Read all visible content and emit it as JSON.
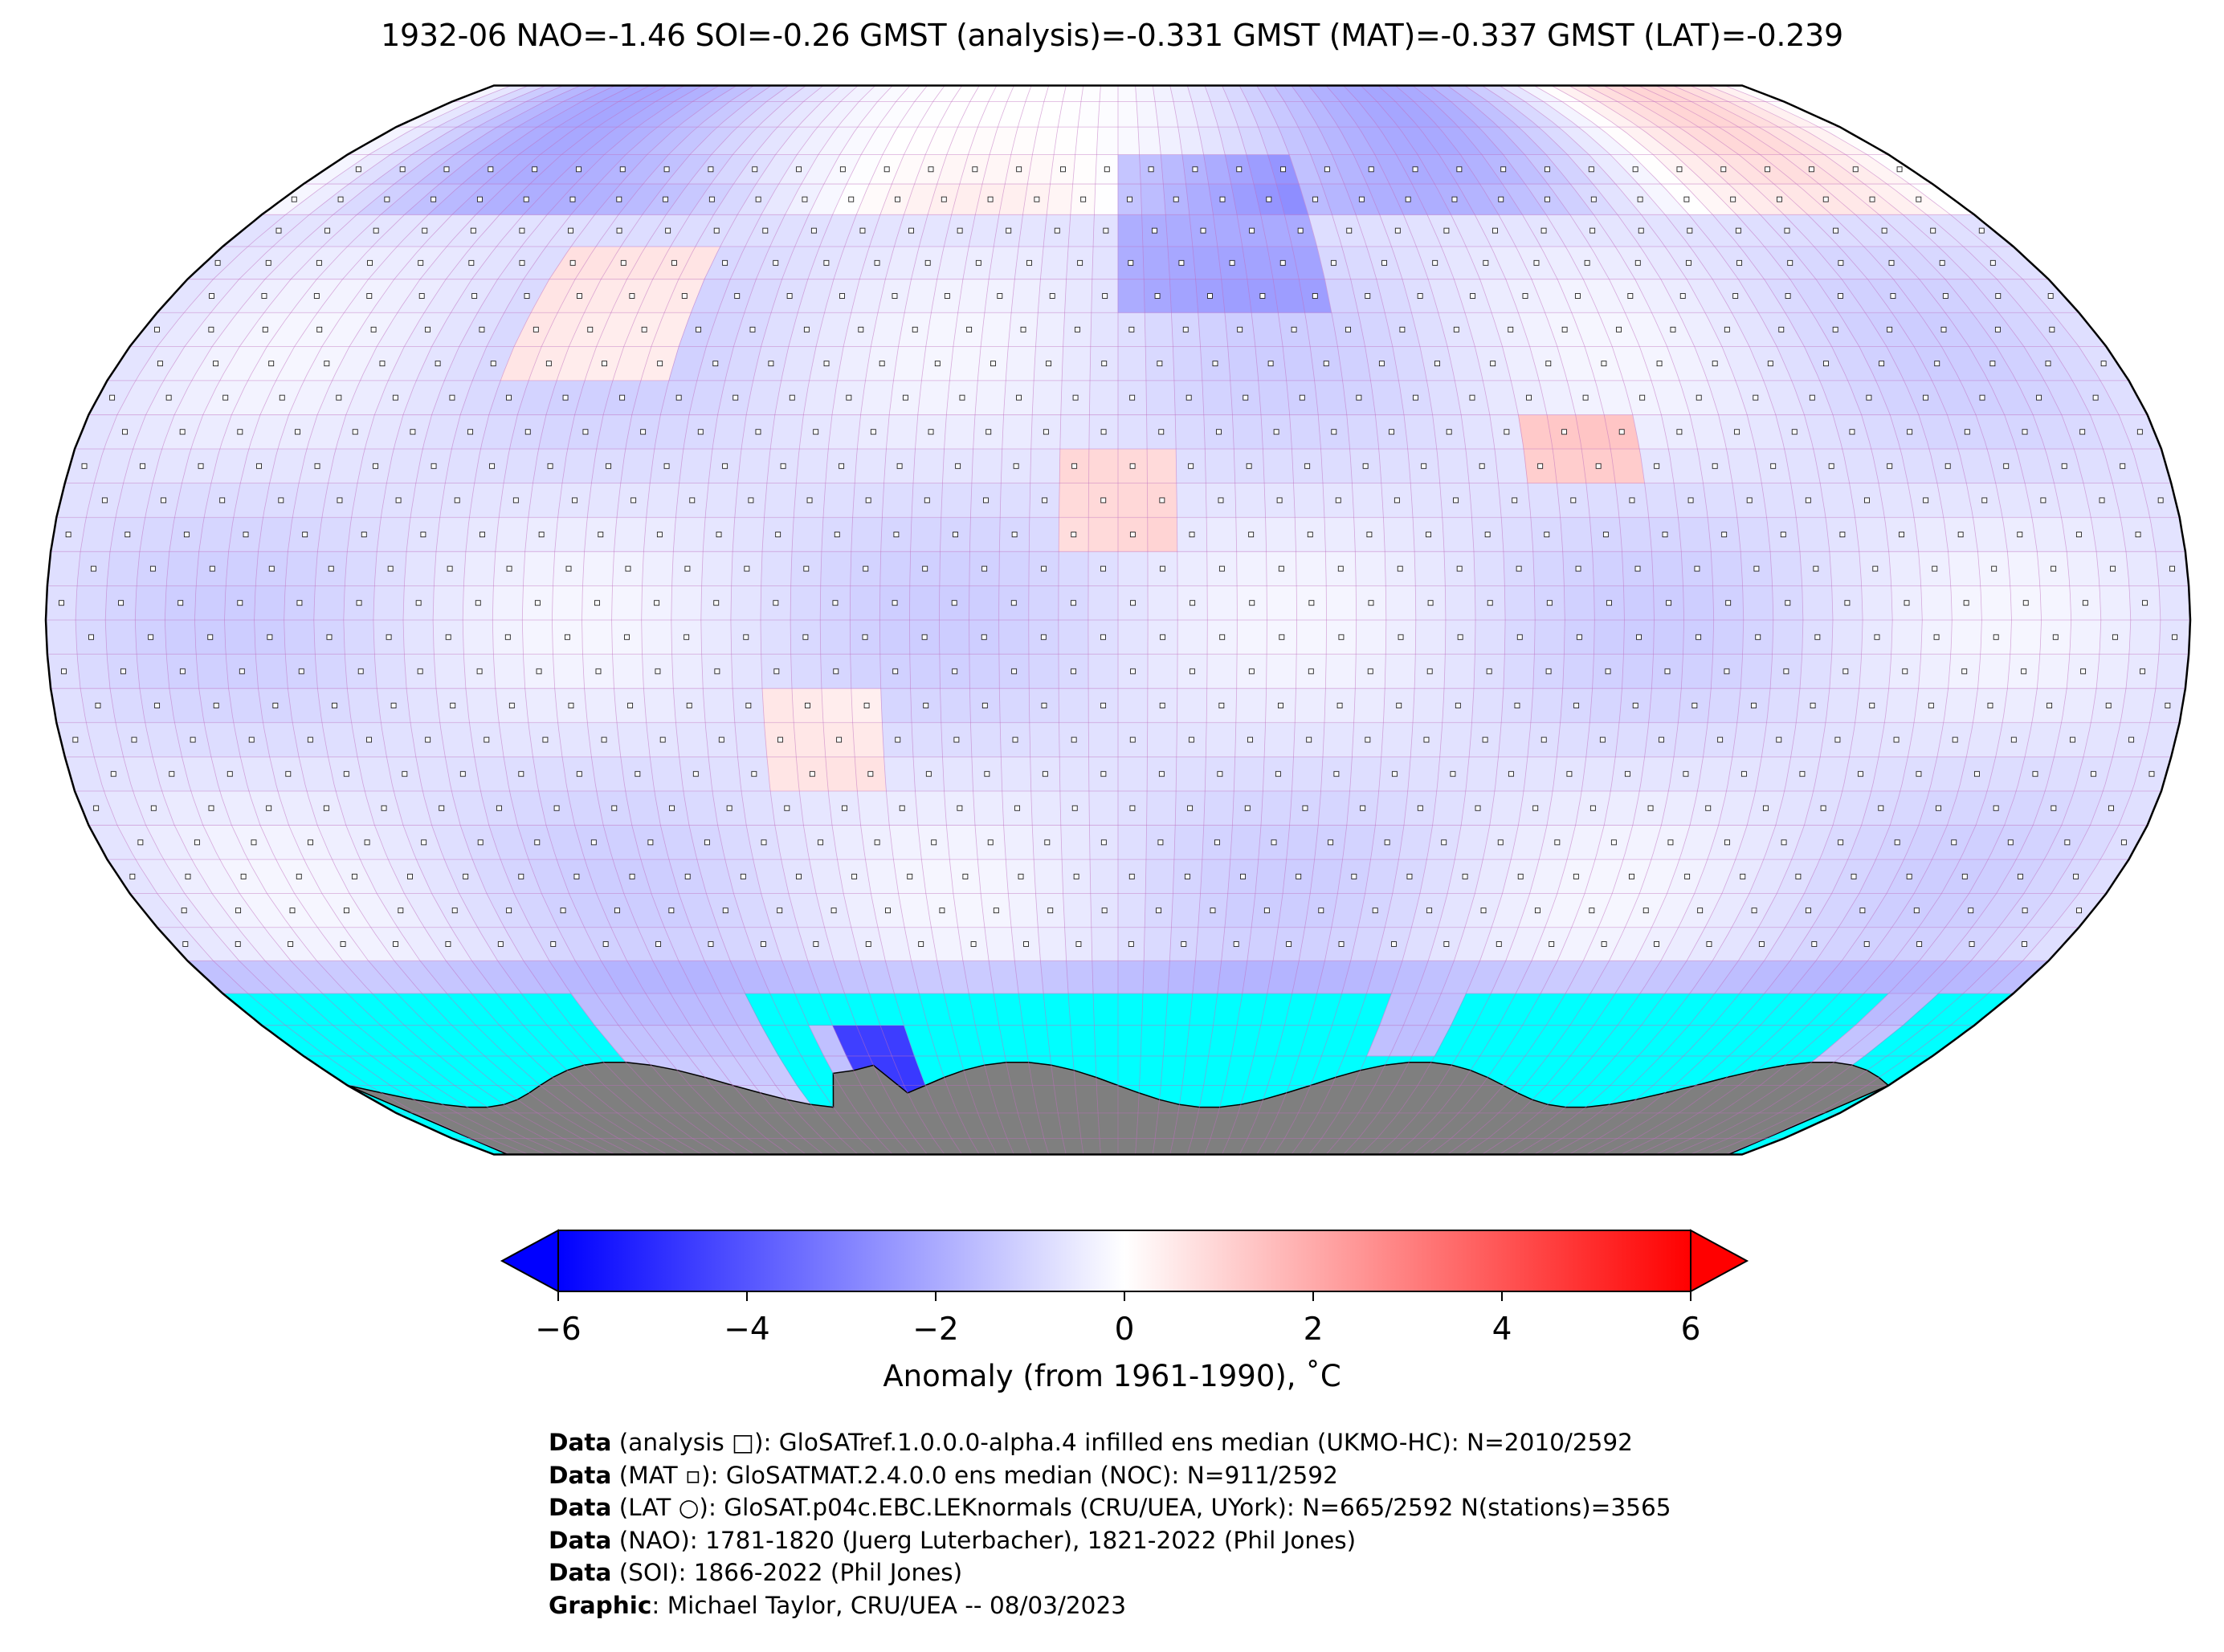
{
  "title": "1932-06 NAO=-1.46 SOI=-0.26 GMST (analysis)=-0.331 GMST (MAT)=-0.337 GMST (LAT)=-0.239",
  "map": {
    "projection": "robinson-like",
    "grid_step_deg": 5,
    "colors": {
      "frame": "#000000",
      "grid": "#c070c0",
      "base_cell": "#eceeff",
      "no_data_ocean": "#00ffff",
      "antarctica": "#7f7f7f"
    },
    "icons": {
      "analysis_marker": "small-square",
      "mat_marker": "filled-small-square",
      "lat_marker": "small-circle"
    }
  },
  "colorbar": {
    "ticks": [
      "−6",
      "−4",
      "−2",
      "0",
      "2",
      "4",
      "6"
    ],
    "label": "Anomaly (from 1961-1990), ˚C",
    "cmap_stops": [
      "#0000ff",
      "#ffffff",
      "#ff0000"
    ],
    "range": [
      -6,
      6
    ],
    "extend": "both"
  },
  "footer": [
    {
      "bold": "Data",
      "text": " (analysis □): GloSATref.1.0.0.0-alpha.4 infilled ens median (UKMO-HC): N=2010/2592"
    },
    {
      "bold": "Data",
      "text": " (MAT ▫): GloSATMAT.2.4.0.0 ens median (NOC): N=911/2592"
    },
    {
      "bold": "Data",
      "text": " (LAT ○): GloSAT.p04c.EBC.LEKnormals (CRU/UEA, UYork): N=665/2592 N(stations)=3565"
    },
    {
      "bold": "Data",
      "text": " (NAO): 1781-1820 (Juerg Luterbacher), 1821-2022 (Phil Jones)"
    },
    {
      "bold": "Data",
      "text": " (SOI): 1866-2022 (Phil Jones)"
    },
    {
      "bold": "Graphic",
      "text": ": Michael Taylor, CRU/UEA -- 08/03/2023"
    }
  ]
}
